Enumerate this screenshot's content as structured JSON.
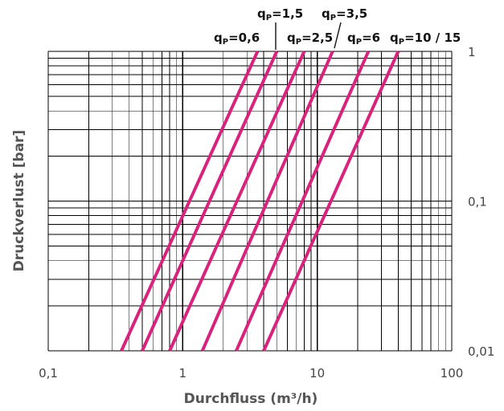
{
  "chart_data": {
    "type": "line",
    "xlabel": "Durchfluss (m³/h)",
    "ylabel": "Druckverlust [bar]",
    "xscale": "log",
    "yscale": "log",
    "xlim": [
      0.1,
      100
    ],
    "ylim": [
      0.01,
      1
    ],
    "grid": true,
    "x_ticks": [
      {
        "value": 0.1,
        "label": "0,1"
      },
      {
        "value": 1,
        "label": "1"
      },
      {
        "value": 10,
        "label": "10"
      },
      {
        "value": 100,
        "label": "100"
      }
    ],
    "y_ticks": [
      {
        "value": 1,
        "label": "1"
      },
      {
        "value": 0.1,
        "label": "0,1"
      },
      {
        "value": 0.01,
        "label": "0,01"
      }
    ],
    "line_color": "#d6247e",
    "series": [
      {
        "name": "qp=0,6",
        "label_main": "q",
        "label_sub": "P",
        "label_rest": "=0,6",
        "x": [
          0.35,
          3.6
        ],
        "y": [
          0.01,
          1
        ]
      },
      {
        "name": "qp=1,5",
        "label_main": "q",
        "label_sub": "P",
        "label_rest": "=1,5",
        "x": [
          0.5,
          5
        ],
        "y": [
          0.01,
          1
        ]
      },
      {
        "name": "qp=2,5",
        "label_main": "q",
        "label_sub": "P",
        "label_rest": "=2,5",
        "x": [
          0.8,
          8
        ],
        "y": [
          0.01,
          1
        ]
      },
      {
        "name": "qp=3,5",
        "label_main": "q",
        "label_sub": "P",
        "label_rest": "=3,5",
        "x": [
          1.4,
          13
        ],
        "y": [
          0.01,
          1
        ]
      },
      {
        "name": "qp=6",
        "label_main": "q",
        "label_sub": "P",
        "label_rest": "=6",
        "x": [
          2.5,
          24
        ],
        "y": [
          0.01,
          1
        ]
      },
      {
        "name": "qp=10 / 15",
        "label_main": "q",
        "label_sub": "P",
        "label_rest": "=10 / 15",
        "x": [
          4,
          40
        ],
        "y": [
          0.01,
          1
        ]
      }
    ]
  }
}
